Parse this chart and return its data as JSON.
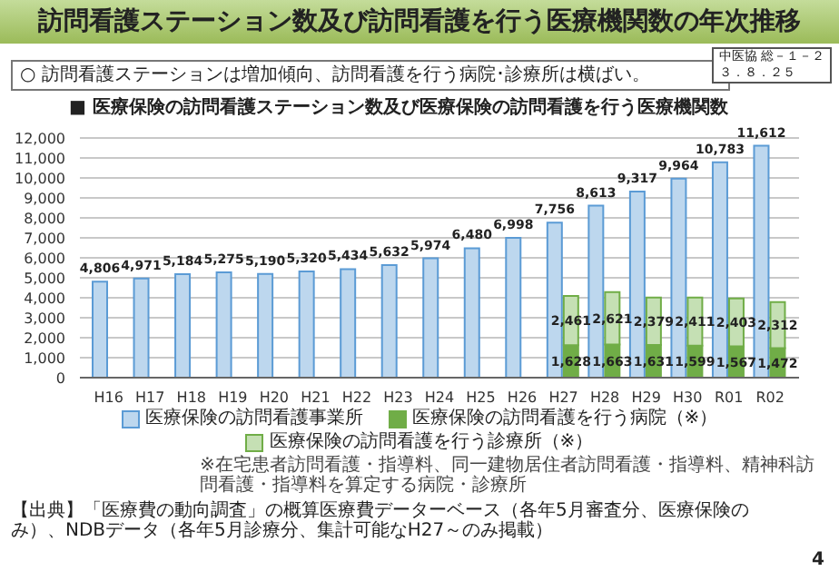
{
  "chart_data": {
    "type": "bar",
    "title": "訪問看護ステーション数及び訪問看護を行う医療機関数の年次推移",
    "subtitle": "○ 訪問看護ステーションは増加傾向、訪問看護を行う病院･診療所は横ばい。",
    "ylabel": "■ 医療保険の訪問看護ステーション数及び医療保険の訪問看護を行う医療機関数",
    "categories": [
      "H16",
      "H17",
      "H18",
      "H19",
      "H20",
      "H21",
      "H22",
      "H23",
      "H24",
      "H25",
      "H26",
      "H27",
      "H28",
      "H29",
      "H30",
      "R01",
      "R02"
    ],
    "series": [
      {
        "name": "医療保険の訪問看護事業所",
        "color": "#bdd7ee",
        "values": [
          4806,
          4971,
          5184,
          5275,
          5190,
          5320,
          5434,
          5632,
          5974,
          6480,
          6998,
          7756,
          8613,
          9317,
          9964,
          10783,
          11612
        ],
        "value_labels": [
          "4,806",
          "4,971",
          "5,184",
          "5,275",
          "5,190",
          "5,320",
          "5,434",
          "5,632",
          "5,974",
          "6,480",
          "6,998",
          "7,756",
          "8,613",
          "9,317",
          "9,964",
          "10,783",
          "11,612"
        ]
      },
      {
        "name": "医療保険の訪問看護を行う病院（※）",
        "color": "#70ad47",
        "values": [
          null,
          null,
          null,
          null,
          null,
          null,
          null,
          null,
          null,
          null,
          null,
          1628,
          1663,
          1631,
          1599,
          1567,
          1472
        ],
        "value_labels": [
          null,
          null,
          null,
          null,
          null,
          null,
          null,
          null,
          null,
          null,
          null,
          "1,628",
          "1,663",
          "1,631",
          "1,599",
          "1,567",
          "1,472"
        ]
      },
      {
        "name": "医療保険の訪問看護を行う診療所（※）",
        "color": "#c5e0b4",
        "values": [
          null,
          null,
          null,
          null,
          null,
          null,
          null,
          null,
          null,
          null,
          null,
          2461,
          2621,
          2379,
          2411,
          2403,
          2312
        ],
        "base": [
          null,
          null,
          null,
          null,
          null,
          null,
          null,
          null,
          null,
          null,
          null,
          1628,
          1663,
          1631,
          1599,
          1567,
          1472
        ],
        "value_labels": [
          null,
          null,
          null,
          null,
          null,
          null,
          null,
          null,
          null,
          null,
          null,
          "2,461",
          "2,621",
          "2,379",
          "2,411",
          "2,403",
          "2,312"
        ]
      }
    ],
    "ylim": [
      0,
      12000
    ],
    "yticks": [
      0,
      {
        "value": 1000,
        "label": "1,000"
      },
      {
        "value": 2000,
        "label": "2,000"
      },
      {
        "value": 3000,
        "label": "3,000"
      },
      {
        "value": 4000,
        "label": "4,000"
      },
      {
        "value": 5000,
        "label": "5,000"
      },
      {
        "value": 6000,
        "label": "6,000"
      },
      {
        "value": 7000,
        "label": "7,000"
      },
      {
        "value": 8000,
        "label": "8,000"
      },
      {
        "value": 9000,
        "label": "9,000"
      },
      {
        "value": 10000,
        "label": "10,000"
      },
      {
        "value": 11000,
        "label": "11,000"
      },
      {
        "value": 12000,
        "label": "12,000"
      }
    ],
    "grid": "y",
    "legend": "bottom",
    "annotations": [
      "中医協 総－１－２",
      "３．８．２５",
      "※在宅患者訪問看護・指導料、同一建物居住者訪問看護・指導料、精神科訪問看護・指導料を算定する病院・診療所",
      "【出典】「医療費の動向調査」の概算医療費データーベース（各年5月審査分、医療保険のみ）、NDBデータ（各年5月診療分、集計可能なH27～のみ掲載）",
      "4"
    ]
  }
}
